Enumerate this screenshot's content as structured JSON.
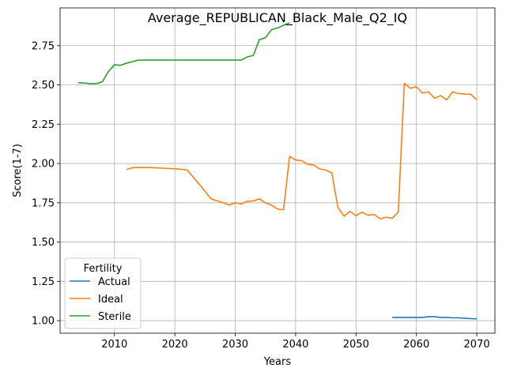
{
  "chart_data": {
    "type": "line",
    "title": "Average_REPUBLICAN_Black_Male_Q2_IQ",
    "xlabel": "Years",
    "ylabel": "Score(1-7)",
    "xlim": [
      2001,
      2073
    ],
    "ylim": [
      0.92,
      2.99
    ],
    "xticks": [
      2010,
      2020,
      2030,
      2040,
      2050,
      2060,
      2070
    ],
    "yticks": [
      1.0,
      1.25,
      1.5,
      1.75,
      2.0,
      2.25,
      2.5,
      2.75
    ],
    "ytick_labels": [
      "1.00",
      "1.25",
      "1.50",
      "1.75",
      "2.00",
      "2.25",
      "2.50",
      "2.75"
    ],
    "grid": true,
    "legend": {
      "title": "Fertility",
      "position": "lower-left"
    },
    "series": [
      {
        "name": "Actual",
        "color": "#1f77b4",
        "points": [
          [
            2056,
            1.02
          ],
          [
            2058,
            1.02
          ],
          [
            2060,
            1.02
          ],
          [
            2061,
            1.02
          ],
          [
            2062,
            1.025
          ],
          [
            2063,
            1.025
          ],
          [
            2064,
            1.02
          ],
          [
            2065,
            1.02
          ],
          [
            2066,
            1.018
          ],
          [
            2067,
            1.018
          ],
          [
            2068,
            1.015
          ],
          [
            2069,
            1.013
          ],
          [
            2070,
            1.012
          ]
        ]
      },
      {
        "name": "Ideal",
        "color": "#ff7f0e",
        "points": [
          [
            2012,
            1.962
          ],
          [
            2013,
            1.973
          ],
          [
            2014,
            1.975
          ],
          [
            2016,
            1.974
          ],
          [
            2018,
            1.97
          ],
          [
            2020,
            1.966
          ],
          [
            2022,
            1.96
          ],
          [
            2024,
            1.87
          ],
          [
            2026,
            1.775
          ],
          [
            2028,
            1.75
          ],
          [
            2029,
            1.735
          ],
          [
            2030,
            1.75
          ],
          [
            2031,
            1.742
          ],
          [
            2032,
            1.76
          ],
          [
            2033,
            1.762
          ],
          [
            2034,
            1.775
          ],
          [
            2035,
            1.75
          ],
          [
            2036,
            1.735
          ],
          [
            2037,
            1.71
          ],
          [
            2038,
            1.705
          ],
          [
            2039,
            2.045
          ],
          [
            2040,
            2.022
          ],
          [
            2041,
            2.018
          ],
          [
            2042,
            1.995
          ],
          [
            2043,
            1.99
          ],
          [
            2044,
            1.965
          ],
          [
            2045,
            1.958
          ],
          [
            2046,
            1.94
          ],
          [
            2047,
            1.72
          ],
          [
            2048,
            1.665
          ],
          [
            2049,
            1.695
          ],
          [
            2050,
            1.668
          ],
          [
            2051,
            1.69
          ],
          [
            2052,
            1.67
          ],
          [
            2053,
            1.675
          ],
          [
            2054,
            1.648
          ],
          [
            2055,
            1.658
          ],
          [
            2056,
            1.652
          ],
          [
            2057,
            1.69
          ],
          [
            2058,
            2.51
          ],
          [
            2059,
            2.478
          ],
          [
            2060,
            2.488
          ],
          [
            2061,
            2.448
          ],
          [
            2062,
            2.455
          ],
          [
            2063,
            2.415
          ],
          [
            2064,
            2.432
          ],
          [
            2065,
            2.405
          ],
          [
            2066,
            2.455
          ],
          [
            2067,
            2.445
          ],
          [
            2068,
            2.442
          ],
          [
            2069,
            2.44
          ],
          [
            2070,
            2.405
          ]
        ]
      },
      {
        "name": "Sterile",
        "color": "#2ca02c",
        "points": [
          [
            2004,
            2.515
          ],
          [
            2005,
            2.512
          ],
          [
            2006,
            2.508
          ],
          [
            2007,
            2.508
          ],
          [
            2008,
            2.52
          ],
          [
            2009,
            2.585
          ],
          [
            2010,
            2.628
          ],
          [
            2011,
            2.625
          ],
          [
            2012,
            2.638
          ],
          [
            2013,
            2.648
          ],
          [
            2014,
            2.658
          ],
          [
            2020,
            2.658
          ],
          [
            2025,
            2.658
          ],
          [
            2030,
            2.658
          ],
          [
            2031,
            2.658
          ],
          [
            2032,
            2.678
          ],
          [
            2033,
            2.688
          ],
          [
            2034,
            2.788
          ],
          [
            2035,
            2.8
          ],
          [
            2036,
            2.852
          ],
          [
            2037,
            2.862
          ],
          [
            2038,
            2.88
          ],
          [
            2039,
            2.895
          ]
        ]
      }
    ]
  }
}
